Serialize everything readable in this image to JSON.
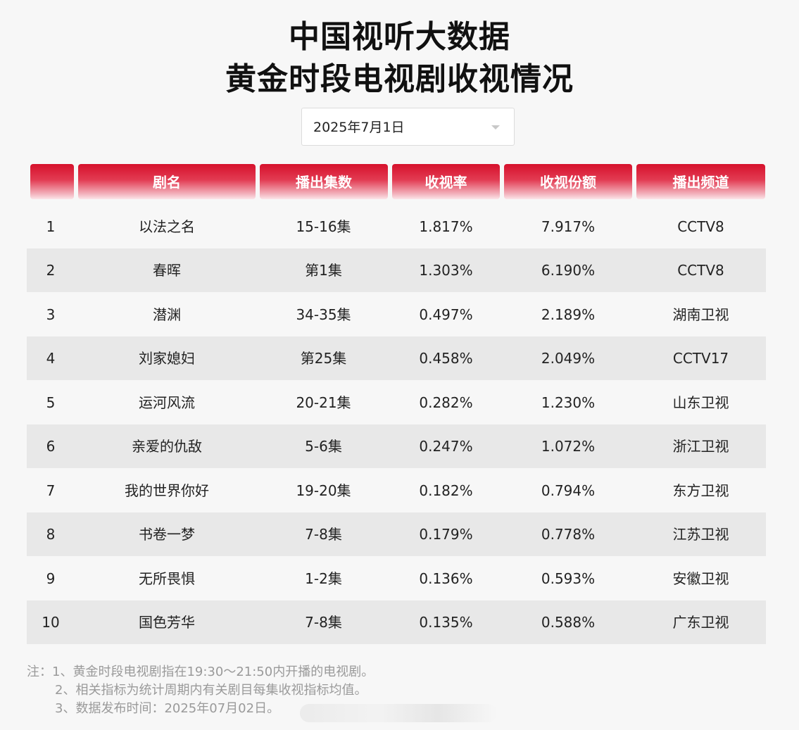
{
  "title": {
    "line1": "中国视听大数据",
    "line2": "黄金时段电视剧收视情况"
  },
  "date_select": {
    "value": "2025年7月1日"
  },
  "table": {
    "headers": [
      "",
      "剧名",
      "播出集数",
      "收视率",
      "收视份额",
      "播出频道"
    ],
    "rows": [
      {
        "rank": "1",
        "name": "以法之名",
        "episodes": "15-16集",
        "rating": "1.817%",
        "share": "7.917%",
        "channel": "CCTV8"
      },
      {
        "rank": "2",
        "name": "春晖",
        "episodes": "第1集",
        "rating": "1.303%",
        "share": "6.190%",
        "channel": "CCTV8"
      },
      {
        "rank": "3",
        "name": "潜渊",
        "episodes": "34-35集",
        "rating": "0.497%",
        "share": "2.189%",
        "channel": "湖南卫视"
      },
      {
        "rank": "4",
        "name": "刘家媳妇",
        "episodes": "第25集",
        "rating": "0.458%",
        "share": "2.049%",
        "channel": "CCTV17"
      },
      {
        "rank": "5",
        "name": "运河风流",
        "episodes": "20-21集",
        "rating": "0.282%",
        "share": "1.230%",
        "channel": "山东卫视"
      },
      {
        "rank": "6",
        "name": "亲爱的仇敌",
        "episodes": "5-6集",
        "rating": "0.247%",
        "share": "1.072%",
        "channel": "浙江卫视"
      },
      {
        "rank": "7",
        "name": "我的世界你好",
        "episodes": "19-20集",
        "rating": "0.182%",
        "share": "0.794%",
        "channel": "东方卫视"
      },
      {
        "rank": "8",
        "name": "书卷一梦",
        "episodes": "7-8集",
        "rating": "0.179%",
        "share": "0.778%",
        "channel": "江苏卫视"
      },
      {
        "rank": "9",
        "name": "无所畏惧",
        "episodes": "1-2集",
        "rating": "0.136%",
        "share": "0.593%",
        "channel": "安徽卫视"
      },
      {
        "rank": "10",
        "name": "国色芳华",
        "episodes": "7-8集",
        "rating": "0.135%",
        "share": "0.588%",
        "channel": "广东卫视"
      }
    ]
  },
  "notes": [
    "注：1、黄金时段电视剧指在19:30～21:50内开播的电视剧。",
    "2、相关指标为统计周期内有关剧目每集收视指标均值。",
    "3、数据发布时间：2025年07月02日。"
  ],
  "colors": {
    "header_red": "#d6112c",
    "row_shade": "#e8e8e8",
    "background": "#f7f7f7",
    "note_text": "#9a9a9a"
  }
}
